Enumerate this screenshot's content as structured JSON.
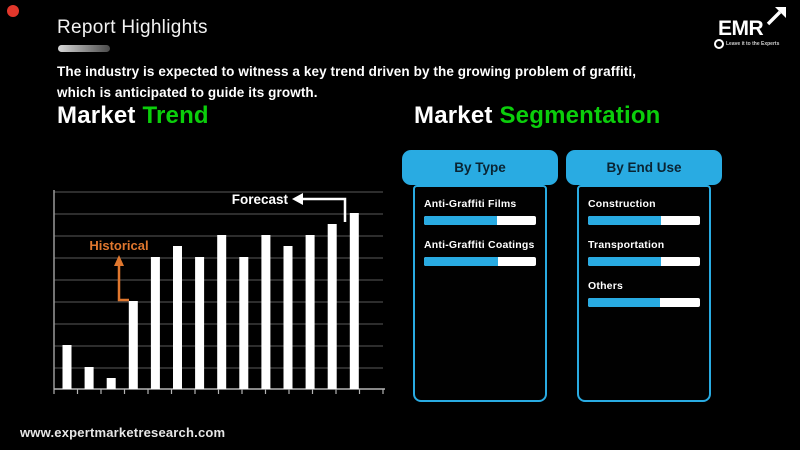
{
  "title": "Report Highlights",
  "logo": {
    "name": "EMR",
    "tagline": "Leave it to the Experts",
    "arrow_icon": "up-right-arrow"
  },
  "intro": {
    "line1": "The industry is expected to witness a key trend driven by the growing problem of graffiti,",
    "line2": "which is anticipated  to guide its growth."
  },
  "sections": {
    "trend": {
      "white": "Market",
      "green": "Trend"
    },
    "segmentation": {
      "white": "Market",
      "green": "Segmentation"
    }
  },
  "chart_data": {
    "type": "bar",
    "title": "Market Trend",
    "xlabel": "",
    "ylabel": "",
    "tick_labels_visible": false,
    "grid": true,
    "num_bars": 14,
    "bar_color": "#FFFFFF",
    "values": [
      2,
      1,
      0.5,
      4,
      6,
      6.5,
      6,
      7,
      6,
      7,
      6.5,
      7,
      7.5,
      8
    ],
    "ylim": [
      0,
      9.2
    ],
    "annotations": [
      {
        "text": "Historical",
        "color": "#E0772E",
        "points_to_bar": 4
      },
      {
        "text": "Forecast",
        "color": "#FFFFFF",
        "points_to_bar": 14
      }
    ]
  },
  "panels": [
    {
      "header": "By Type",
      "items": [
        {
          "label": "Anti-Graffiti  Films",
          "fill_pct": 65
        },
        {
          "label": "Anti-Graffiti Coatings",
          "fill_pct": 66
        }
      ]
    },
    {
      "header": "By End Use",
      "items": [
        {
          "label": "Construction",
          "fill_pct": 65
        },
        {
          "label": "Transportation",
          "fill_pct": 65
        },
        {
          "label": "Others",
          "fill_pct": 64
        }
      ]
    }
  ],
  "footer": {
    "website": "www.expertmarketresearch.com"
  },
  "colors": {
    "green": "#0BCE0B",
    "blue": "#29ABE2",
    "orange": "#E0772E",
    "red_dot": "#E2372B",
    "grid": "#5A5A5A",
    "axis": "#B5B5B5",
    "bar": "#FFFFFF",
    "background": "#000000"
  }
}
